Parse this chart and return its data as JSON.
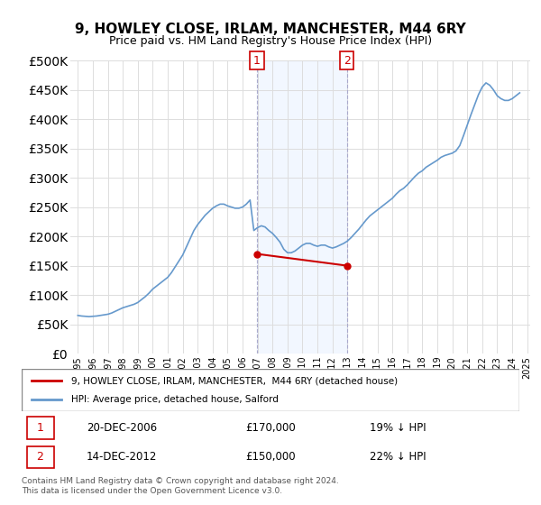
{
  "title": "9, HOWLEY CLOSE, IRLAM, MANCHESTER, M44 6RY",
  "subtitle": "Price paid vs. HM Land Registry's House Price Index (HPI)",
  "legend_line1": "9, HOWLEY CLOSE, IRLAM, MANCHESTER,  M44 6RY (detached house)",
  "legend_line2": "HPI: Average price, detached house, Salford",
  "footnote": "Contains HM Land Registry data © Crown copyright and database right 2024.\nThis data is licensed under the Open Government Licence v3.0.",
  "annotation1": {
    "label": "1",
    "date": "20-DEC-2006",
    "price": "£170,000",
    "pct": "19% ↓ HPI"
  },
  "annotation2": {
    "label": "2",
    "date": "14-DEC-2012",
    "price": "£150,000",
    "pct": "22% ↓ HPI"
  },
  "hpi_color": "#6699cc",
  "price_color": "#cc0000",
  "background_color": "#ffffff",
  "plot_bg_color": "#ffffff",
  "ylim": [
    0,
    500000
  ],
  "yticks": [
    0,
    50000,
    100000,
    150000,
    200000,
    250000,
    300000,
    350000,
    400000,
    450000,
    500000
  ],
  "ylabel_format": "£{0}K",
  "hpi_data": {
    "years": [
      1995.0,
      1995.25,
      1995.5,
      1995.75,
      1996.0,
      1996.25,
      1996.5,
      1996.75,
      1997.0,
      1997.25,
      1997.5,
      1997.75,
      1998.0,
      1998.25,
      1998.5,
      1998.75,
      1999.0,
      1999.25,
      1999.5,
      1999.75,
      2000.0,
      2000.25,
      2000.5,
      2000.75,
      2001.0,
      2001.25,
      2001.5,
      2001.75,
      2002.0,
      2002.25,
      2002.5,
      2002.75,
      2003.0,
      2003.25,
      2003.5,
      2003.75,
      2004.0,
      2004.25,
      2004.5,
      2004.75,
      2005.0,
      2005.25,
      2005.5,
      2005.75,
      2006.0,
      2006.25,
      2006.5,
      2006.75,
      2007.0,
      2007.25,
      2007.5,
      2007.75,
      2008.0,
      2008.25,
      2008.5,
      2008.75,
      2009.0,
      2009.25,
      2009.5,
      2009.75,
      2010.0,
      2010.25,
      2010.5,
      2010.75,
      2011.0,
      2011.25,
      2011.5,
      2011.75,
      2012.0,
      2012.25,
      2012.5,
      2012.75,
      2013.0,
      2013.25,
      2013.5,
      2013.75,
      2014.0,
      2014.25,
      2014.5,
      2014.75,
      2015.0,
      2015.25,
      2015.5,
      2015.75,
      2016.0,
      2016.25,
      2016.5,
      2016.75,
      2017.0,
      2017.25,
      2017.5,
      2017.75,
      2018.0,
      2018.25,
      2018.5,
      2018.75,
      2019.0,
      2019.25,
      2019.5,
      2019.75,
      2020.0,
      2020.25,
      2020.5,
      2020.75,
      2021.0,
      2021.25,
      2021.5,
      2021.75,
      2022.0,
      2022.25,
      2022.5,
      2022.75,
      2023.0,
      2023.25,
      2023.5,
      2023.75,
      2024.0,
      2024.25,
      2024.5
    ],
    "values": [
      65000,
      64000,
      63500,
      63000,
      63500,
      64000,
      65000,
      66000,
      67000,
      69000,
      72000,
      75000,
      78000,
      80000,
      82000,
      84000,
      87000,
      92000,
      97000,
      103000,
      110000,
      115000,
      120000,
      125000,
      130000,
      138000,
      148000,
      158000,
      168000,
      182000,
      196000,
      210000,
      220000,
      228000,
      236000,
      242000,
      248000,
      252000,
      255000,
      255000,
      252000,
      250000,
      248000,
      248000,
      250000,
      255000,
      262000,
      210000,
      215000,
      218000,
      216000,
      210000,
      205000,
      198000,
      190000,
      178000,
      172000,
      172000,
      175000,
      180000,
      185000,
      188000,
      188000,
      185000,
      183000,
      185000,
      185000,
      182000,
      180000,
      182000,
      185000,
      188000,
      192000,
      198000,
      205000,
      212000,
      220000,
      228000,
      235000,
      240000,
      245000,
      250000,
      255000,
      260000,
      265000,
      272000,
      278000,
      282000,
      288000,
      295000,
      302000,
      308000,
      312000,
      318000,
      322000,
      326000,
      330000,
      335000,
      338000,
      340000,
      342000,
      346000,
      355000,
      372000,
      390000,
      408000,
      425000,
      442000,
      455000,
      462000,
      458000,
      450000,
      440000,
      435000,
      432000,
      432000,
      435000,
      440000,
      445000
    ]
  },
  "price_data": {
    "years": [
      2006.96,
      2012.96
    ],
    "values": [
      170000,
      150000
    ]
  },
  "point1_year": 2006.96,
  "point1_value": 170000,
  "point2_year": 2012.96,
  "point2_value": 150000,
  "vline1_year": 2006.96,
  "vline2_year": 2012.96,
  "xmin": 1994.5,
  "xmax": 2025.2
}
